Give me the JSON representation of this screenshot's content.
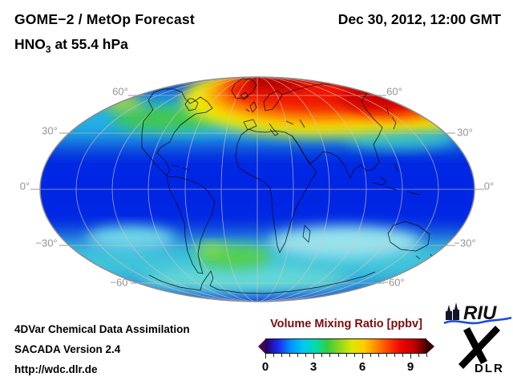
{
  "header": {
    "title": "GOME−2 / MetOp Forecast",
    "species_prefix": "HNO",
    "species_sub": "3",
    "species_suffix": " at 55.4 hPa",
    "datetime": "Dec 30, 2012, 12:00 GMT"
  },
  "map": {
    "projection": "Mollweide",
    "lat_labels_left": [
      "60°",
      "30°",
      "0°",
      "−30°",
      "−60°"
    ],
    "lat_labels_right": [
      "60°",
      "30°",
      "0°",
      "−30°",
      "−60°"
    ]
  },
  "colorbar": {
    "title": "Volume Mixing Ratio [ppbv]",
    "ticks": [
      "0",
      "3",
      "6",
      "9"
    ],
    "min": 0,
    "max": 10,
    "minor_tick_count": 21,
    "gradient": [
      "#2a0070",
      "#1c2bee",
      "#0092ff",
      "#00c8f0",
      "#00ddb0",
      "#35cc3f",
      "#8ed61e",
      "#dce800",
      "#ffcc00",
      "#ff8800",
      "#ff3c00",
      "#ee0400",
      "#c40000",
      "#5c0000"
    ],
    "left_arrow_color": "#46005e",
    "right_arrow_color": "#3a0000"
  },
  "footer": {
    "line1": "4DVar Chemical Data Assimilation",
    "line2": "SACADA Version 2.4",
    "line3": "http://wdc.dlr.de"
  },
  "logos": {
    "riu": "RIU",
    "dlr": "DLR"
  },
  "chart_data": {
    "type": "heatmap",
    "title": "GOME−2 / MetOp Forecast HNO3 at 55.4 hPa",
    "datetime": "Dec 30, 2012, 12:00 GMT",
    "variable": "HNO3 volume mixing ratio",
    "units": "ppbv",
    "projection": "Mollweide (global, centered on 0° longitude)",
    "colorbar": {
      "label": "Volume Mixing Ratio [ppbv]",
      "ticks": [
        0,
        3,
        6,
        9
      ],
      "range": [
        0,
        10
      ]
    },
    "latitude_gridlines_deg": [
      60,
      30,
      0,
      -30,
      -60
    ],
    "field_summary": [
      {
        "region": "Arctic / northern Europe / western Siberia (55N–85N)",
        "value_ppbv": "8–10 (field maximum, red/dark-red)"
      },
      {
        "region": "ring surrounding polar maximum (45N–55N)",
        "value_ppbv": "5–7 (yellow/orange)"
      },
      {
        "region": "Canada / Alaska patches (55N–70N)",
        "value_ppbv": "4–6 (green/yellow-green)"
      },
      {
        "region": "northern mid-latitudes (30N–50N)",
        "value_ppbv": "2–4 (cyan)"
      },
      {
        "region": "tropics (25S–25N)",
        "value_ppbv": "1–2 (deep blue, field minimum)"
      },
      {
        "region": "southern mid/high latitudes (30S–65S)",
        "value_ppbv": "2–3 (cyan/turquoise)"
      },
      {
        "region": "patch near southern South America (45S–60S)",
        "value_ppbv": "4–5 (green)"
      },
      {
        "region": "Antarctica (65S–90S)",
        "value_ppbv": "2–3 (cyan)"
      }
    ]
  }
}
